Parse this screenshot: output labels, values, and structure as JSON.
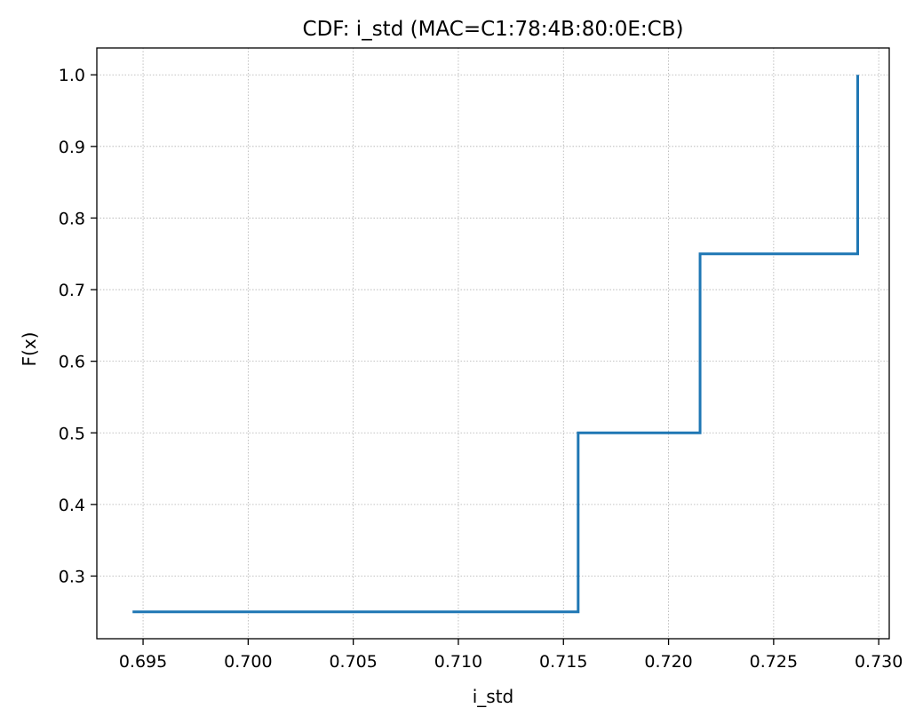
{
  "chart_data": {
    "type": "line",
    "subtype": "step-cdf",
    "title": "CDF: i_std (MAC=C1:78:4B:80:0E:CB)",
    "xlabel": "i_std",
    "ylabel": "F(x)",
    "xlim": [
      0.6928,
      0.7305
    ],
    "ylim": [
      0.2125,
      1.0375
    ],
    "xticks": [
      0.695,
      0.7,
      0.705,
      0.71,
      0.715,
      0.72,
      0.725,
      0.73
    ],
    "xtick_labels": [
      "0.695",
      "0.700",
      "0.705",
      "0.710",
      "0.715",
      "0.720",
      "0.725",
      "0.730"
    ],
    "yticks": [
      0.3,
      0.4,
      0.5,
      0.6,
      0.7,
      0.8,
      0.9,
      1.0
    ],
    "ytick_labels": [
      "0.3",
      "0.4",
      "0.5",
      "0.6",
      "0.7",
      "0.8",
      "0.9",
      "1.0"
    ],
    "grid": true,
    "series": [
      {
        "x": [
          0.6945,
          0.7157,
          0.7215,
          0.729
        ],
        "y": [
          0.25,
          0.5,
          0.75,
          1.0
        ],
        "color": "#1f77b4"
      }
    ]
  }
}
